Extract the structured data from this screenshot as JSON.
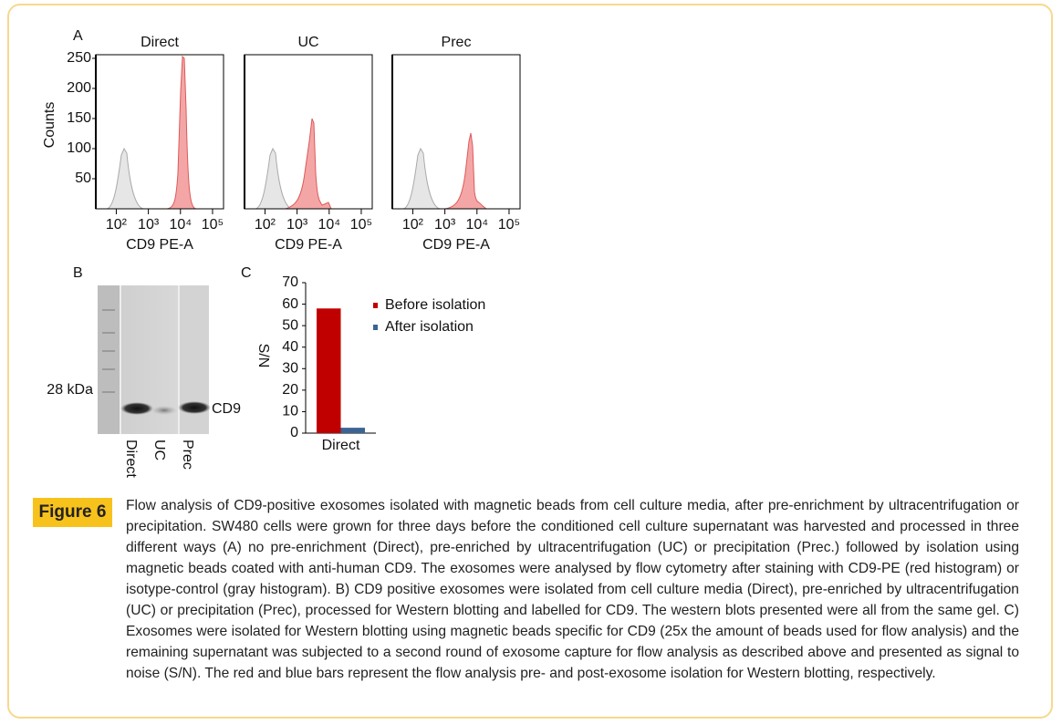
{
  "figure": {
    "panel_a": {
      "label": "A",
      "y_label": "Counts",
      "x_label": "CD9 PE-A",
      "log_scale": true,
      "xlim": [
        23,
        220000
      ],
      "ylim": [
        0,
        256
      ],
      "xticks": [
        {
          "value": 100,
          "label": "10²"
        },
        {
          "value": 1000,
          "label": "10³"
        },
        {
          "value": 10000,
          "label": "10⁴"
        },
        {
          "value": 100000,
          "label": "10⁵"
        }
      ],
      "yticks": [
        50,
        100,
        150,
        200,
        250
      ],
      "panels": [
        {
          "title": "Direct"
        },
        {
          "title": "UC"
        },
        {
          "title": "Prec"
        }
      ]
    },
    "panel_b": {
      "label": "B",
      "marker": "28 kDa",
      "band": "CD9",
      "lanes": [
        "Direct",
        "UC",
        "Prec"
      ]
    },
    "panel_c": {
      "label": "C",
      "type": "bar",
      "y_label": "S/N",
      "categories": [
        "Direct"
      ],
      "series": [
        {
          "name": "Before isolation",
          "color": "#c00000",
          "values": [
            58
          ]
        },
        {
          "name": "After isolation",
          "color": "#3b6494",
          "values": [
            2.5
          ]
        }
      ],
      "ylim": [
        0,
        70
      ],
      "yticks": [
        0,
        10,
        20,
        30,
        40,
        50,
        60,
        70
      ]
    },
    "caption": {
      "label": "Figure 6",
      "text": "Flow analysis of CD9-positive exosomes isolated with magnetic beads from cell culture media, after pre-enrichment by ultracentrifugation or precipitation. SW480 cells were grown for three days before the conditioned cell culture supernatant was harvested and processed in three different ways (A) no pre-enrichment (Direct), pre-enriched by ultracentrifugation (UC) or precipitation (Prec.) followed by isolation using magnetic beads coated with anti-human CD9. The exosomes were analysed by flow cytometry after staining with CD9-PE (red histogram) or isotype-control (gray histogram). B) CD9 positive exosomes were isolated from cell culture media (Direct), pre-enriched by ultracentrifugation (UC) or precipitation (Prec), processed for Western blotting and labelled for CD9. The western blots presented were all from the same gel. C) Exosomes were isolated for Western blotting using magnetic beads specific for CD9 (25x the amount of beads used for flow analysis) and the remaining supernatant was subjected to a second round of exosome capture for flow analysis as described above and presented as signal to noise (S/N). The red and blue bars represent the flow analysis pre- and post-exosome isolation for Western blotting, respectively."
    }
  }
}
